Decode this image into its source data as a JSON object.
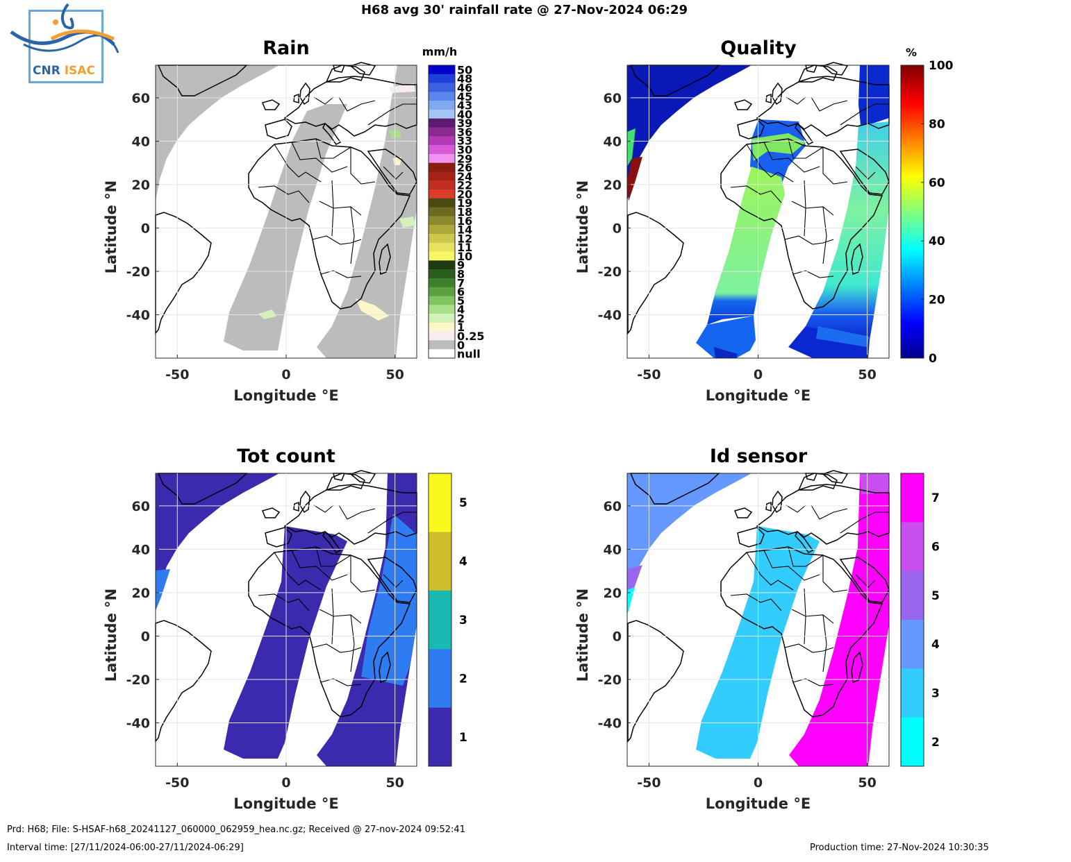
{
  "figure_title": "H68 avg 30' rainfall rate @ 27-Nov-2024 06:29",
  "logo": {
    "text_left": "CNR",
    "text_right": "ISAC",
    "colors": {
      "blue": "#2a64a8",
      "orange": "#f0a030",
      "frame": "#6aa7d6"
    }
  },
  "panels": [
    {
      "id": "rain",
      "title": "Rain",
      "colorbar_unit": "mm/h",
      "colorbar_labels": [
        "50",
        "48",
        "46",
        "45",
        "43",
        "40",
        "39",
        "36",
        "33",
        "30",
        "29",
        "26",
        "24",
        "22",
        "20",
        "19",
        "18",
        "16",
        "14",
        "12",
        "11",
        "10",
        "9",
        "8",
        "7",
        "6",
        "5",
        "4",
        "2",
        "1",
        "0.25",
        "0",
        "null"
      ],
      "colorbar_colors": [
        "#0000cc",
        "#1f3fd8",
        "#3a63e3",
        "#5b86ec",
        "#80a9f2",
        "#a6c6f6",
        "#5a1a6f",
        "#8b2a8e",
        "#b43bb5",
        "#d65ad8",
        "#f092ef",
        "#8a1c12",
        "#a62418",
        "#c22e1f",
        "#dd3a28",
        "#4a4a14",
        "#6b6a20",
        "#8c8a2c",
        "#ada83a",
        "#ccc84b",
        "#e8e35e",
        "#faf565",
        "#1f3a12",
        "#2a5c1c",
        "#3f7f2c",
        "#5aa13f",
        "#81c35f",
        "#a9df88",
        "#d3f2b8",
        "#fcf6c9",
        "#f7ecf2",
        "#bcbcbc",
        "#ffffff"
      ]
    },
    {
      "id": "quality",
      "title": "Quality",
      "colorbar_unit": "%",
      "colorbar_labels": [
        "100",
        "80",
        "60",
        "40",
        "20",
        "0"
      ]
    },
    {
      "id": "tot-count",
      "title": "Tot count",
      "colorbar_labels": [
        "5",
        "4",
        "3",
        "2",
        "1"
      ],
      "colorbar_colors": [
        "#f9f91c",
        "#cdbd2c",
        "#19b9b1",
        "#2e7bf2",
        "#3b2aad"
      ]
    },
    {
      "id": "id-sensor",
      "title": "Id sensor",
      "colorbar_labels": [
        "7",
        "6",
        "5",
        "4",
        "3",
        "2"
      ],
      "colorbar_colors": [
        "#ff00ff",
        "#c84ef0",
        "#9966f0",
        "#6699ff",
        "#33ccff",
        "#00ffff"
      ]
    }
  ],
  "axes": {
    "xlabel": "Longitude °E",
    "ylabel": "Latitude °N",
    "xticks": [
      -50,
      0,
      50
    ],
    "yticks": [
      60,
      40,
      20,
      0,
      -20,
      -40
    ],
    "xlim": [
      -60,
      60
    ],
    "ylim": [
      -60,
      75
    ]
  },
  "footer": {
    "line1": "Prd: H68; File: S-HSAF-h68_20241127_060000_062959_hea.nc.gz; Received @ 27-nov-2024 09:52:41",
    "line2": "Interval time: [27/11/2024-06:00-27/11/2024-06:29]",
    "production": "Production time: 27-Nov-2024 10:30:35"
  }
}
